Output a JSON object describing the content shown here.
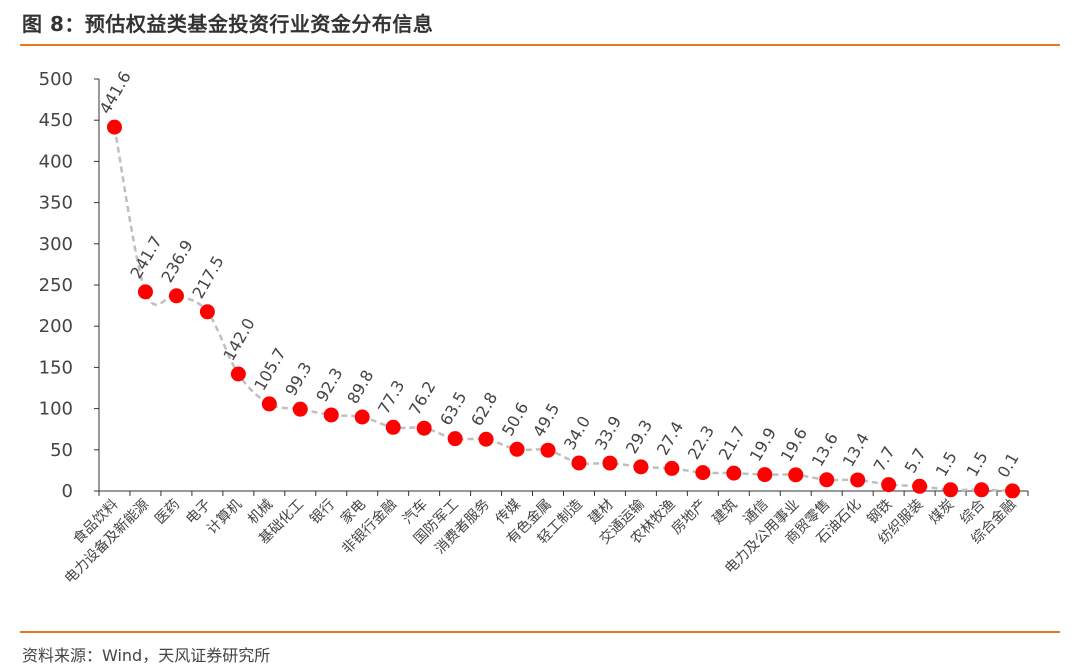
{
  "header": {
    "title": "图 8：预估权益类基金投资行业资金分布信息"
  },
  "footer": {
    "source": "资料来源：Wind，天风证券研究所"
  },
  "colors": {
    "accent": "#e87722",
    "marker": "#ff0000",
    "line": "#bfbfbf"
  },
  "chart_data": {
    "type": "line",
    "title": "",
    "xlabel": "",
    "ylabel": "",
    "ylim": [
      0,
      500
    ],
    "yticks": [
      0,
      50,
      100,
      150,
      200,
      250,
      300,
      350,
      400,
      450,
      500
    ],
    "grid": false,
    "legend": "none",
    "categories": [
      "食品饮料",
      "电力设备及新能源",
      "医药",
      "电子",
      "计算机",
      "机械",
      "基础化工",
      "银行",
      "家电",
      "非银行金融",
      "汽车",
      "国防军工",
      "消费者服务",
      "传媒",
      "有色金属",
      "轻工制造",
      "建材",
      "交通运输",
      "农林牧渔",
      "房地产",
      "建筑",
      "通信",
      "电力及公用事业",
      "商贸零售",
      "石油石化",
      "钢铁",
      "纺织服装",
      "煤炭",
      "综合",
      "综合金融"
    ],
    "series": [
      {
        "values": [
          441.6,
          241.7,
          236.9,
          217.5,
          142.0,
          105.7,
          99.3,
          92.3,
          89.8,
          77.3,
          76.2,
          63.5,
          62.8,
          50.6,
          49.5,
          34.0,
          33.9,
          29.3,
          27.4,
          22.3,
          21.7,
          19.9,
          19.6,
          13.6,
          13.4,
          7.7,
          5.7,
          1.5,
          1.5,
          0.1
        ]
      }
    ],
    "data_labels": [
      "441.6",
      "241.7",
      "236.9",
      "217.5",
      "142.0",
      "105.7",
      "99.3",
      "92.3",
      "89.8",
      "77.3",
      "76.2",
      "63.5",
      "62.8",
      "50.6",
      "49.5",
      "34.0",
      "33.9",
      "29.3",
      "27.4",
      "22.3",
      "21.7",
      "19.9",
      "19.6",
      "13.6",
      "13.4",
      "7.7",
      "5.7",
      "1.5",
      "1.5",
      "0.1"
    ]
  }
}
